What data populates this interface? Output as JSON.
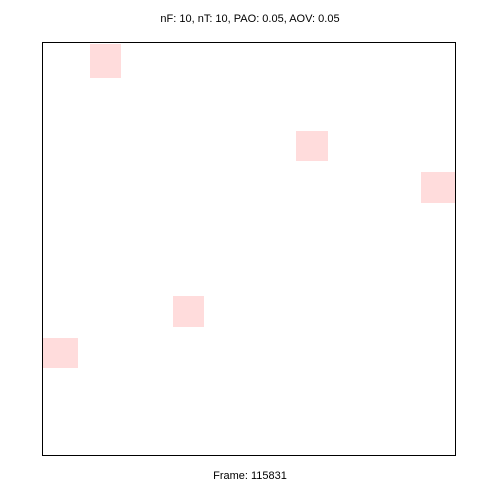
{
  "header": {
    "stats_text": "nF: 10, nT: 10, PAO: 0.05, AOV: 0.05"
  },
  "footer": {
    "frame_text": "Frame: 115831"
  },
  "targets": {
    "color": "#ffdcdc",
    "count_visible": 5
  }
}
